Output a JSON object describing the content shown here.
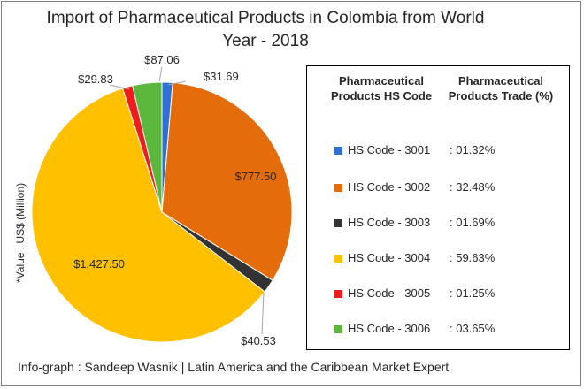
{
  "chart_data": {
    "type": "pie",
    "title": "Import of Pharmaceutical Products in Colombia from World Year - 2018",
    "unit_label": "*Value : US$ (Million)",
    "slices": [
      {
        "code": "HS Code - 3001",
        "value": 31.69,
        "value_label": "$31.69",
        "share": ": 01.32%",
        "color": "#2f6fd6"
      },
      {
        "code": "HS Code - 3002",
        "value": 777.5,
        "value_label": "$777.50",
        "share": ": 32.48%",
        "color": "#e46c0a"
      },
      {
        "code": "HS Code - 3003",
        "value": 40.53,
        "value_label": "$40.53",
        "share": ": 01.69%",
        "color": "#333333"
      },
      {
        "code": "HS Code - 3004",
        "value": 1427.5,
        "value_label": "$1,427.50",
        "share": ": 59.63%",
        "color": "#ffc000"
      },
      {
        "code": "HS Code - 3005",
        "value": 29.83,
        "value_label": "$29.83",
        "share": ": 01.25%",
        "color": "#ee1c1c"
      },
      {
        "code": "HS Code - 3006",
        "value": 87.06,
        "value_label": "$87.06",
        "share": ": 03.65%",
        "color": "#5cb83c"
      }
    ]
  },
  "legend": {
    "header_code": "Pharmaceutical Products HS Code",
    "header_trade": "Pharmaceutical Products Trade (%)"
  },
  "footer": "Info-graph : Sandeep Wasnik | Latin America and the Caribbean Market Expert"
}
